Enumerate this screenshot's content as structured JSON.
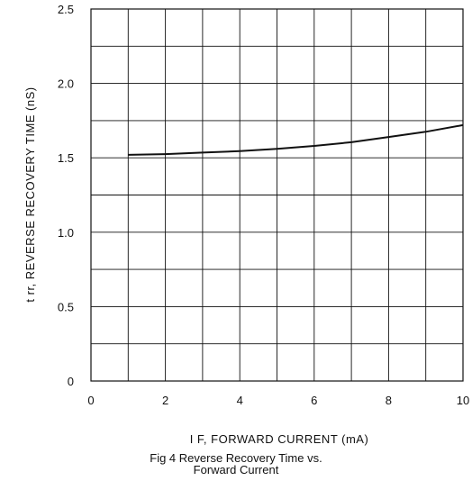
{
  "chart_data": {
    "type": "line",
    "xlabel": "I F, FORWARD CURRENT (mA)",
    "ylabel": "t rr, REVERSE RECOVERY TIME (nS)",
    "xlim": [
      0,
      10
    ],
    "ylim": [
      0,
      2.5
    ],
    "x_ticks": [
      "0",
      "2",
      "4",
      "6",
      "8",
      "10"
    ],
    "y_ticks": [
      "0",
      "0.5",
      "1.0",
      "1.5",
      "2.0",
      "2.5"
    ],
    "grid": true,
    "series": [
      {
        "color": "#111111",
        "x": [
          1,
          2,
          3,
          4,
          5,
          6,
          7,
          8,
          9,
          10
        ],
        "y": [
          1.52,
          1.525,
          1.535,
          1.545,
          1.56,
          1.58,
          1.605,
          1.64,
          1.675,
          1.72
        ]
      }
    ]
  },
  "figure": {
    "title_line1": "Fig 4  Reverse Recovery Time vs.",
    "title_line2": "Forward Current"
  }
}
